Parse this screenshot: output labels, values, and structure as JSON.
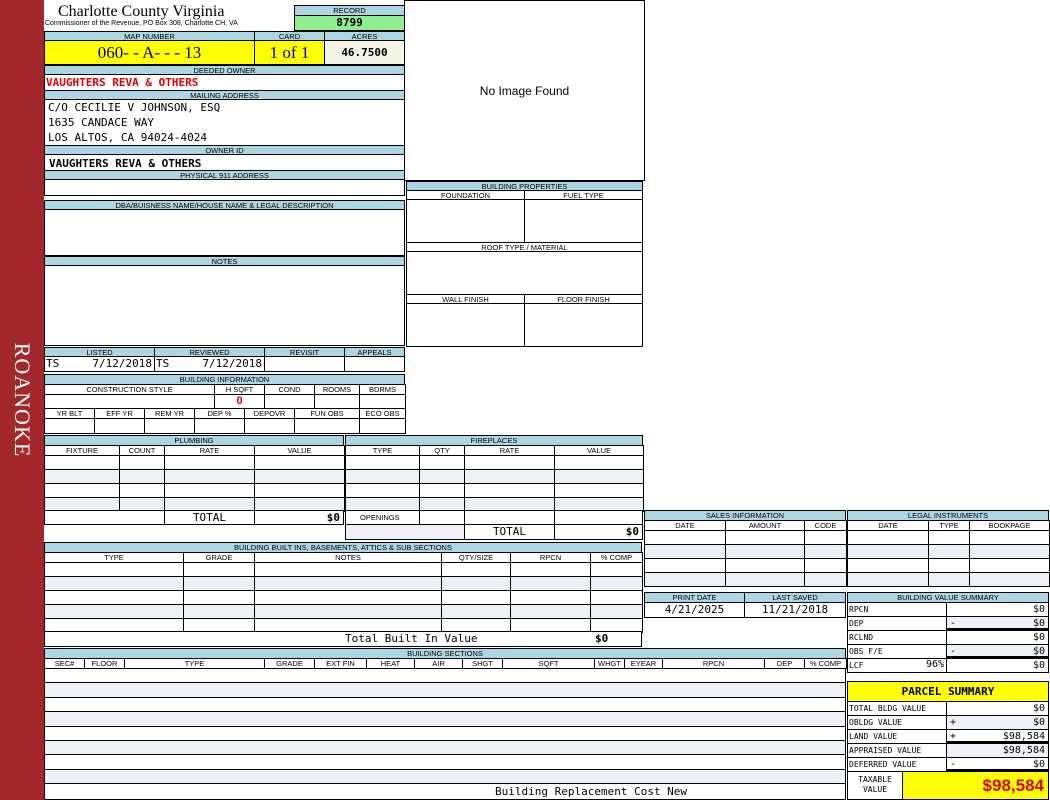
{
  "sidebar": {
    "label": "ROANOKE",
    "color": "#a3282b"
  },
  "header": {
    "title": "Charlotte County Virginia",
    "subtitle": "Commissioner of the Revenue, PO Box 308, Charlotte CH, VA",
    "record_label": "RECORD",
    "record": "8799"
  },
  "parcel": {
    "map_label": "MAP NUMBER",
    "map_number": "060- - A- - - 13",
    "card_label": "CARD",
    "card": "1 of 1",
    "acres_label": "ACRES",
    "acres": "46.7500"
  },
  "owner": {
    "deeded_label": "DEEDED OWNER",
    "deeded": "VAUGHTERS REVA & OTHERS",
    "mailing_label": "MAILING ADDRESS",
    "mailing": [
      "C/O CECILIE V JOHNSON, ESQ",
      "1635 CANDACE WAY",
      "LOS ALTOS, CA 94024-4024"
    ],
    "owner_id_label": "OWNER ID",
    "owner_id": "VAUGHTERS REVA & OTHERS",
    "physical_label": "PHYSICAL 911 ADDRESS",
    "physical": ""
  },
  "image": {
    "text": "No Image Found"
  },
  "dba": {
    "label": "DBA/BUISNESS NAME/HOUSE NAME & LEGAL DESCRIPTION"
  },
  "notes": {
    "label": "NOTES"
  },
  "props": {
    "label": "BUILDING PROPERTIES",
    "foundation": "FOUNDATION",
    "fuel": "FUEL TYPE",
    "roof": "ROOF TYPE / MATERIAL",
    "wall": "WALL FINISH",
    "floor": "FLOOR FINISH"
  },
  "review": {
    "listed_label": "LISTED",
    "listed_by": "TS",
    "listed": "7/12/2018",
    "reviewed_label": "REVIEWED",
    "reviewed_by": "TS",
    "reviewed": "7/12/2018",
    "revisit_label": "REVISIT",
    "appeals_label": "APPEALS"
  },
  "bldg_info": {
    "label": "BUILDING INFORMATION",
    "cols1": [
      "CONSTRUCTION STYLE",
      "H SQFT",
      "COND",
      "ROOMS",
      "BDRMS"
    ],
    "hsqft": "0",
    "cols2": [
      "YR BLT",
      "EFF YR",
      "REM YR",
      "DEP %",
      "DEPOVR",
      "FUN OBS",
      "ECO OBS"
    ]
  },
  "plumbing": {
    "label": "PLUMBING",
    "cols": [
      "FIXTURE",
      "COUNT",
      "RATE",
      "VALUE"
    ],
    "total_label": "TOTAL",
    "total": "$0"
  },
  "fireplaces": {
    "label": "FIREPLACES",
    "cols": [
      "TYPE",
      "QTY",
      "RATE",
      "VALUE"
    ],
    "openings_label": "OPENINGS",
    "total_label": "TOTAL",
    "total": "$0"
  },
  "builtins": {
    "label": "BUILDING BUILT INS, BASEMENTS, ATTICS & SUB SECTIONS",
    "cols": [
      "TYPE",
      "GRADE",
      "NOTES",
      "QTY/SIZE",
      "RPCN",
      "% COMP"
    ],
    "total_label": "Total Built In Value",
    "total": "$0"
  },
  "sections": {
    "label": "BUILDING SECTIONS",
    "cols": [
      "SEC#",
      "FLOOR",
      "TYPE",
      "GRADE",
      "EXT FIN",
      "HEAT",
      "AIR",
      "SHGT",
      "SQFT",
      "WHGT",
      "EYEAR",
      "RPCN",
      "DEP",
      "% COMP"
    ],
    "footer": "Building Replacement Cost New"
  },
  "sales": {
    "label": "SALES INFORMATION",
    "cols": [
      "DATE",
      "AMOUNT",
      "CODE"
    ]
  },
  "legal": {
    "label": "LEGAL INSTRUMENTS",
    "cols": [
      "DATE",
      "TYPE",
      "BOOKPAGE"
    ]
  },
  "dates": {
    "print_label": "PRINT DATE",
    "print": "4/21/2025",
    "saved_label": "LAST SAVED",
    "saved": "11/21/2018"
  },
  "value_summary": {
    "label": "BUILDING VALUE SUMMARY",
    "rows": [
      {
        "label": "RPCN",
        "sign": "",
        "value": "$0"
      },
      {
        "label": "DEP",
        "sign": "-",
        "value": "$0"
      },
      {
        "label": "RCLND",
        "sign": "",
        "value": "$0"
      },
      {
        "label": "OBS F/E",
        "sign": "-",
        "value": "$0"
      },
      {
        "label": "LCF",
        "pct": "96%",
        "sign": "",
        "value": "$0"
      }
    ]
  },
  "parcel_summary": {
    "label": "PARCEL SUMMARY",
    "rows": [
      {
        "label": "TOTAL BLDG VALUE",
        "sign": "",
        "value": "$0"
      },
      {
        "label": "OBLDG VALUE",
        "sign": "+",
        "value": "$0"
      },
      {
        "label": "LAND VALUE",
        "sign": "+",
        "value": "$98,584"
      },
      {
        "label": "APPRAISED VALUE",
        "sign": "",
        "value": "$98,584"
      },
      {
        "label": "DEFERRED VALUE",
        "sign": "-",
        "value": "$0"
      }
    ],
    "taxable_label": "TAXABLE VALUE",
    "taxable": "$98,584"
  },
  "colors": {
    "header_blue": "#acd6e4",
    "yellow": "#ffff00",
    "green": "#90ee90",
    "red": "#e00000"
  }
}
